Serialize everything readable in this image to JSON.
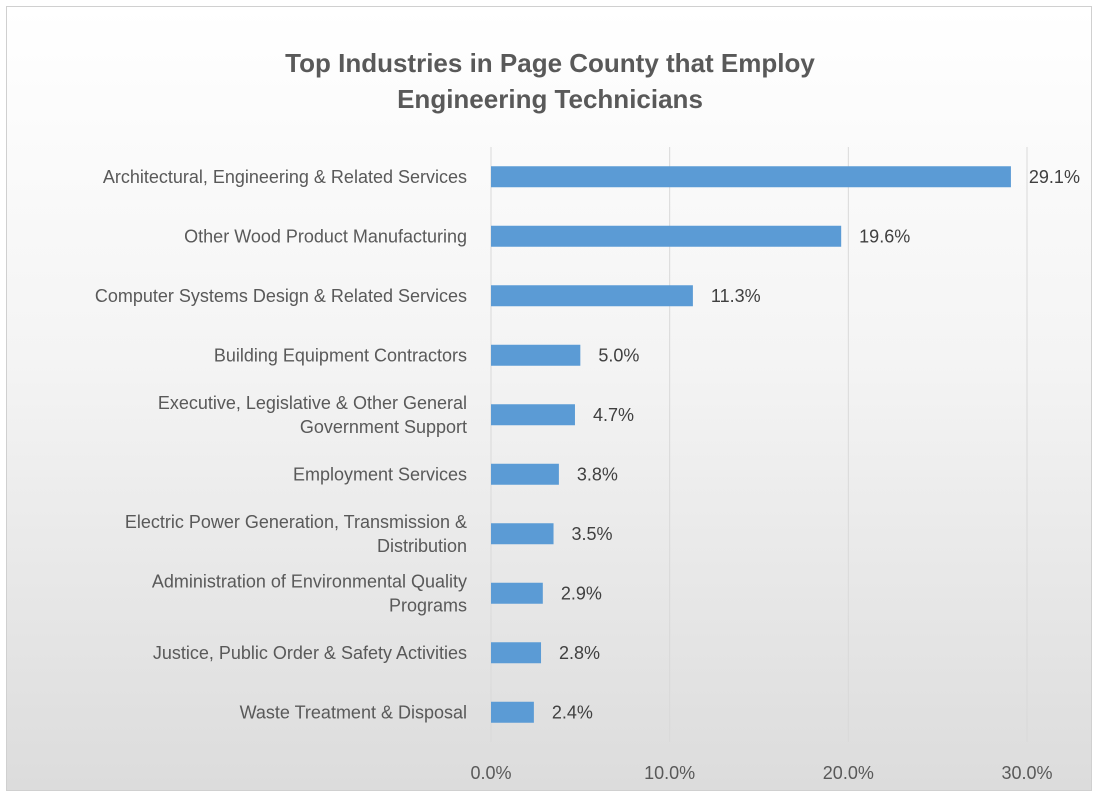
{
  "chart_data": {
    "type": "bar",
    "orientation": "horizontal",
    "title_lines": [
      "Top Industries in Page County that Employ",
      "Engineering Technicians"
    ],
    "categories": [
      [
        "Architectural, Engineering & Related Services"
      ],
      [
        "Other Wood Product Manufacturing"
      ],
      [
        "Computer Systems Design & Related Services"
      ],
      [
        "Building Equipment Contractors"
      ],
      [
        "Executive, Legislative & Other General",
        "Government Support"
      ],
      [
        "Employment Services"
      ],
      [
        "Electric Power Generation, Transmission &",
        "Distribution"
      ],
      [
        "Administration of Environmental Quality",
        "Programs"
      ],
      [
        "Justice, Public Order & Safety Activities"
      ],
      [
        "Waste Treatment & Disposal"
      ]
    ],
    "values": [
      29.1,
      19.6,
      11.3,
      5.0,
      4.7,
      3.8,
      3.5,
      2.9,
      2.8,
      2.4
    ],
    "value_labels": [
      "29.1%",
      "19.6%",
      "11.3%",
      "5.0%",
      "4.7%",
      "3.8%",
      "3.5%",
      "2.9%",
      "2.8%",
      "2.4%"
    ],
    "x_ticks": [
      0,
      10,
      20,
      30
    ],
    "x_tick_labels": [
      "0.0%",
      "10.0%",
      "20.0%",
      "30.0%"
    ],
    "xlim": [
      0,
      30
    ],
    "grid": true,
    "legend": "none",
    "bar_color": "#5b9bd5",
    "grid_color": "#d9d9d9"
  }
}
